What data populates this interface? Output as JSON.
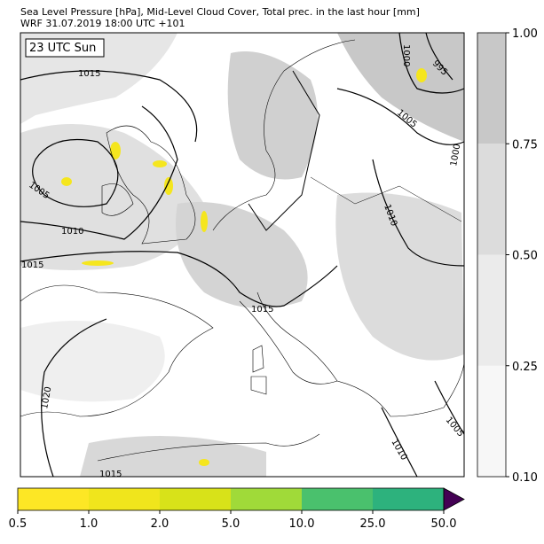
{
  "header": {
    "line1": "Sea Level Pressure [hPa], Mid-Level Cloud Cover, Total prec. in the last hour [mm]",
    "line2": "WRF 31.07.2019 18:00 UTC +101"
  },
  "map": {
    "time_label": "23 UTC Sun",
    "isobar_labels": [
      "1015",
      "1005",
      "1010",
      "1015",
      "1000",
      "995",
      "1005",
      "1010",
      "1015",
      "1020",
      "1005",
      "1010",
      "1015",
      "1000"
    ]
  },
  "cloud_colorbar": {
    "ticks": [
      {
        "value": 0.1,
        "label": "0.10"
      },
      {
        "value": 0.25,
        "label": "0.25"
      },
      {
        "value": 0.5,
        "label": "0.50"
      },
      {
        "value": 0.75,
        "label": "0.75"
      },
      {
        "value": 1,
        "label": "1.00"
      }
    ],
    "colors": [
      "#f7f7f7",
      "#ebebeb",
      "#dcdcdc",
      "#c8c8c8"
    ]
  },
  "precip_colorbar": {
    "ticks": [
      0.5,
      {
        "value": 1,
        "label": "1.0"
      },
      {
        "value": 2,
        "label": "2.0"
      },
      {
        "value": 5,
        "label": "5.0"
      },
      {
        "value": 10,
        "label": "10.0"
      },
      {
        "value": 25,
        "label": "25.0"
      },
      {
        "value": 50,
        "label": "50.0"
      }
    ],
    "colors": [
      "#fde725",
      "#f0e51c",
      "#d8e219",
      "#a0da39",
      "#4ac16d",
      "#2db27d",
      "#3b528b"
    ],
    "extend_color": "#440154"
  }
}
